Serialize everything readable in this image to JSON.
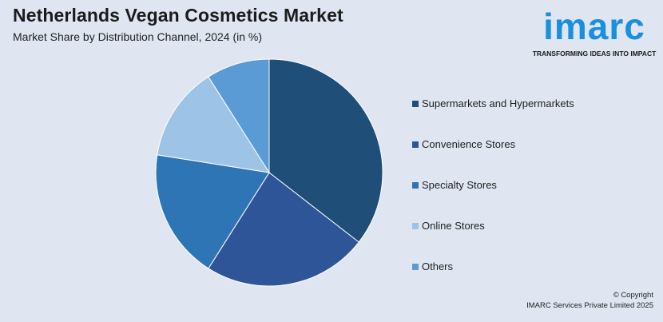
{
  "header": {
    "title": "Netherlands Vegan Cosmetics Market",
    "subtitle": "Market Share by Distribution Channel, 2024 (in %)"
  },
  "logo": {
    "word": "imarc",
    "tagline": "TRANSFORMING IDEAS INTO IMPACT"
  },
  "footer": {
    "copyright_line1": "© Copyright",
    "copyright_line2": "IMARC Services Private Limited 2025"
  },
  "chart_data": {
    "type": "pie",
    "title": "Netherlands Vegan Cosmetics Market",
    "subtitle": "Market Share by Distribution Channel, 2024 (in %)",
    "legend_position": "right",
    "start_angle": "top, clockwise",
    "categories": [
      "Supermarkets and Hypermarkets",
      "Convenience Stores",
      "Specialty Stores",
      "Online Stores",
      "Others"
    ],
    "values": [
      35.5,
      23.5,
      18.5,
      13.5,
      9
    ],
    "colors": [
      "#1f4e79",
      "#2e5597",
      "#2e75b6",
      "#9dc3e6",
      "#5b9bd5"
    ]
  }
}
